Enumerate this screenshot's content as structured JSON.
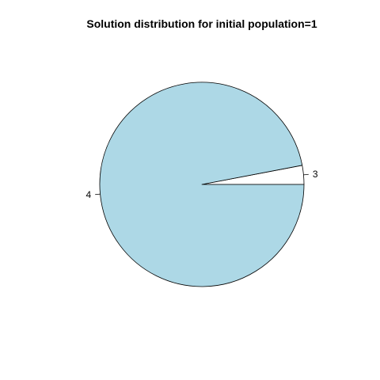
{
  "chart_data": {
    "type": "pie",
    "title": "Solution distribution for initial population=1",
    "slices": [
      {
        "label": "3",
        "value": 3,
        "color": "#ffffff"
      },
      {
        "label": "4",
        "value": 97,
        "color": "#add8e6"
      }
    ],
    "start_angle_deg": 0,
    "direction": "counterclockwise"
  }
}
